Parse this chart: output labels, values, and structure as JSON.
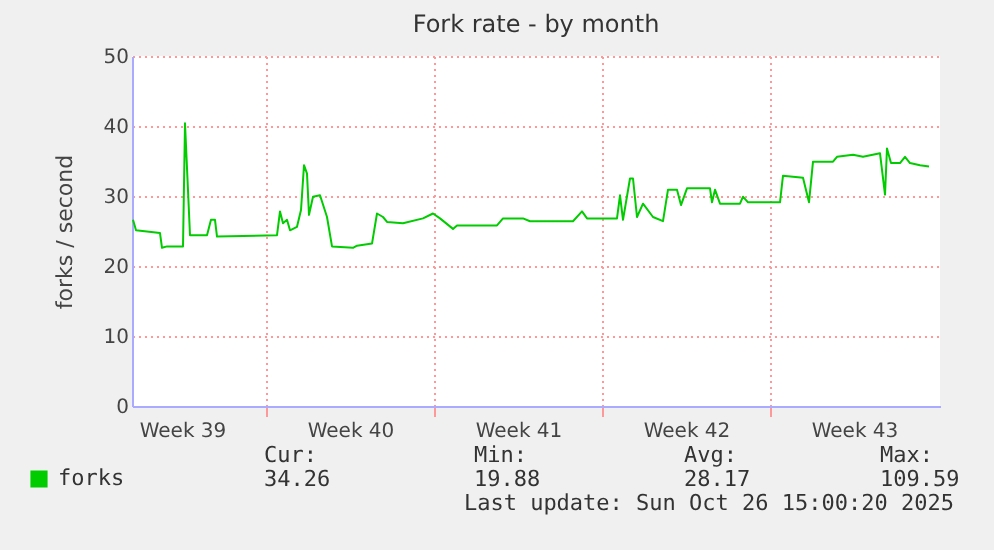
{
  "chart_data": {
    "type": "line",
    "title": "Fork rate - by month",
    "ylabel": "forks / second",
    "x": [
      "2025-09-23T11:00",
      "2025-09-23T14:00",
      "2025-09-24T14:00",
      "2025-09-24T16:00",
      "2025-09-24T21:00",
      "2025-09-25T13:00",
      "2025-09-25T15:00",
      "2025-09-25T20:00",
      "2025-09-26T13:00",
      "2025-09-26T17:00",
      "2025-09-26T21:00",
      "2025-09-26T23:00",
      "2025-09-29T11:00",
      "2025-09-29T14:00",
      "2025-09-29T17:00",
      "2025-09-29T21:00",
      "2025-09-30T00:00",
      "2025-09-30T07:00",
      "2025-09-30T11:00",
      "2025-09-30T14:00",
      "2025-09-30T17:00",
      "2025-09-30T19:00",
      "2025-09-30T23:00",
      "2025-10-01T06:00",
      "2025-10-01T13:00",
      "2025-10-01T18:00",
      "2025-10-02T15:00",
      "2025-10-02T19:00",
      "2025-10-03T10:00",
      "2025-10-03T15:00",
      "2025-10-03T21:00",
      "2025-10-04T01:00",
      "2025-10-04T17:00",
      "2025-10-05T13:00",
      "2025-10-05T23:00",
      "2025-10-06T06:00",
      "2025-10-06T19:00",
      "2025-10-06T23:00",
      "2025-10-08T15:00",
      "2025-10-08T21:00",
      "2025-10-09T17:00",
      "2025-10-10T00:00",
      "2025-10-11T19:00",
      "2025-10-12T04:00",
      "2025-10-12T09:00",
      "2025-10-13T08:00",
      "2025-10-13T15:00",
      "2025-10-13T18:00",
      "2025-10-13T21:00",
      "2025-10-14T04:00",
      "2025-10-14T07:00",
      "2025-10-14T11:00",
      "2025-10-14T17:00",
      "2025-10-15T03:00",
      "2025-10-15T13:00",
      "2025-10-15T18:00",
      "2025-10-16T03:00",
      "2025-10-16T07:00",
      "2025-10-16T13:00",
      "2025-10-17T12:00",
      "2025-10-17T14:00",
      "2025-10-17T17:00",
      "2025-10-17T22:00",
      "2025-10-18T18:00",
      "2025-10-18T21:00",
      "2025-10-19T02:00",
      "2025-10-20T10:00",
      "2025-10-20T13:00",
      "2025-10-21T09:00",
      "2025-10-21T15:00",
      "2025-10-21T19:00",
      "2025-10-22T15:00",
      "2025-10-22T19:00",
      "2025-10-23T11:00",
      "2025-10-23T21:00",
      "2025-10-24T14:00",
      "2025-10-24T19:00",
      "2025-10-24T21:00",
      "2025-10-25T01:00",
      "2025-10-25T10:00",
      "2025-10-25T15:00",
      "2025-10-25T20:00",
      "2025-10-26T06:00",
      "2025-10-26T15:00"
    ],
    "series": [
      {
        "name": "forks",
        "color": "#00cc00",
        "values": [
          26.6,
          25.1,
          24.7,
          22.6,
          22.8,
          22.8,
          40.4,
          24.4,
          24.4,
          26.6,
          26.6,
          24.2,
          24.4,
          27.8,
          26.1,
          26.6,
          25.1,
          25.6,
          28.0,
          34.4,
          33.2,
          27.3,
          29.9,
          30.1,
          27.0,
          22.8,
          22.6,
          22.9,
          23.2,
          27.5,
          27.0,
          26.3,
          26.1,
          26.8,
          27.5,
          26.8,
          25.3,
          25.8,
          25.8,
          26.8,
          26.8,
          26.4,
          26.4,
          27.8,
          26.8,
          26.8,
          26.8,
          30.1,
          26.6,
          32.5,
          32.5,
          27.0,
          28.9,
          27.0,
          26.4,
          30.9,
          30.9,
          28.7,
          31.1,
          31.1,
          29.1,
          30.9,
          28.9,
          28.9,
          29.9,
          29.1,
          29.1,
          32.9,
          32.6,
          29.1,
          34.9,
          34.9,
          35.6,
          35.9,
          35.6,
          36.1,
          30.2,
          36.8,
          34.7,
          34.7,
          35.6,
          34.7,
          34.4,
          34.2
        ]
      }
    ],
    "xlim": [
      "2025-09-23T10:00",
      "2025-10-27T02:00"
    ],
    "xticks": [
      {
        "value": "2025-09-25T12:00",
        "label": "Week 39"
      },
      {
        "value": "2025-09-29T00:00",
        "label": null
      },
      {
        "value": "2025-10-02T12:00",
        "label": "Week 40"
      },
      {
        "value": "2025-10-06T00:00",
        "label": null
      },
      {
        "value": "2025-10-09T12:00",
        "label": "Week 41"
      },
      {
        "value": "2025-10-13T00:00",
        "label": null
      },
      {
        "value": "2025-10-16T12:00",
        "label": "Week 42"
      },
      {
        "value": "2025-10-20T00:00",
        "label": null
      },
      {
        "value": "2025-10-23T12:00",
        "label": "Week 43"
      }
    ],
    "ylim": [
      0,
      50
    ],
    "yticks": [
      0,
      10,
      20,
      30,
      40,
      50
    ],
    "grid": true,
    "legend": "bottom left",
    "annotations": [
      "Cur:",
      "Min:",
      "Avg:",
      "Max:",
      "34.26",
      "19.88",
      "28.17",
      "109.59",
      "Last update: Sun Oct 26 15:00:20 2025"
    ]
  }
}
